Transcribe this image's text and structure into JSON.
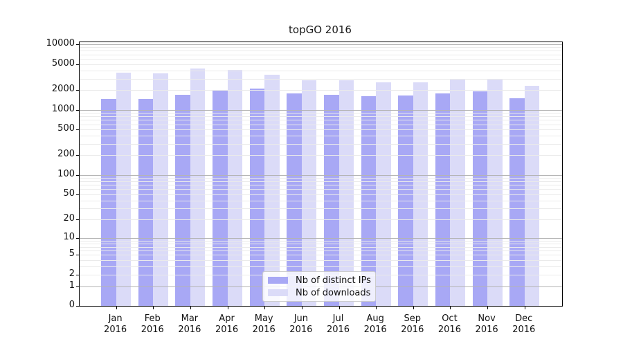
{
  "title": "topGO 2016",
  "colors": {
    "ips_bar": "#a8a8f5",
    "downloads_bar": "#dbdbf8",
    "axis": "#000000",
    "grid_major": "#b4b4b4",
    "grid_minor": "#eaeaea"
  },
  "chart_data": {
    "type": "bar",
    "title": "topGO 2016",
    "categories": [
      "Jan",
      "Feb",
      "Mar",
      "Apr",
      "May",
      "Jun",
      "Jul",
      "Aug",
      "Sep",
      "Oct",
      "Nov",
      "Dec"
    ],
    "x_year": "2016",
    "series": [
      {
        "name": "Nb of distinct IPs",
        "color": "#a8a8f5",
        "values": [
          1450,
          1450,
          1700,
          1950,
          2100,
          1800,
          1700,
          1600,
          1650,
          1800,
          1900,
          1500
        ]
      },
      {
        "name": "Nb of downloads",
        "color": "#dbdbf8",
        "values": [
          3700,
          3600,
          4250,
          4100,
          3450,
          2800,
          2800,
          2650,
          2650,
          3000,
          3000,
          2350
        ]
      }
    ],
    "xlabel": "",
    "ylabel": "",
    "yscale": "log1p",
    "ylim": [
      0,
      10800
    ],
    "yticks": [
      0,
      1,
      2,
      5,
      10,
      20,
      50,
      100,
      200,
      500,
      1000,
      2000,
      5000,
      10000
    ],
    "grid": {
      "horizontal": true,
      "minor": true,
      "drawn_over_bars": true
    },
    "legend_position": "bottom-center"
  }
}
